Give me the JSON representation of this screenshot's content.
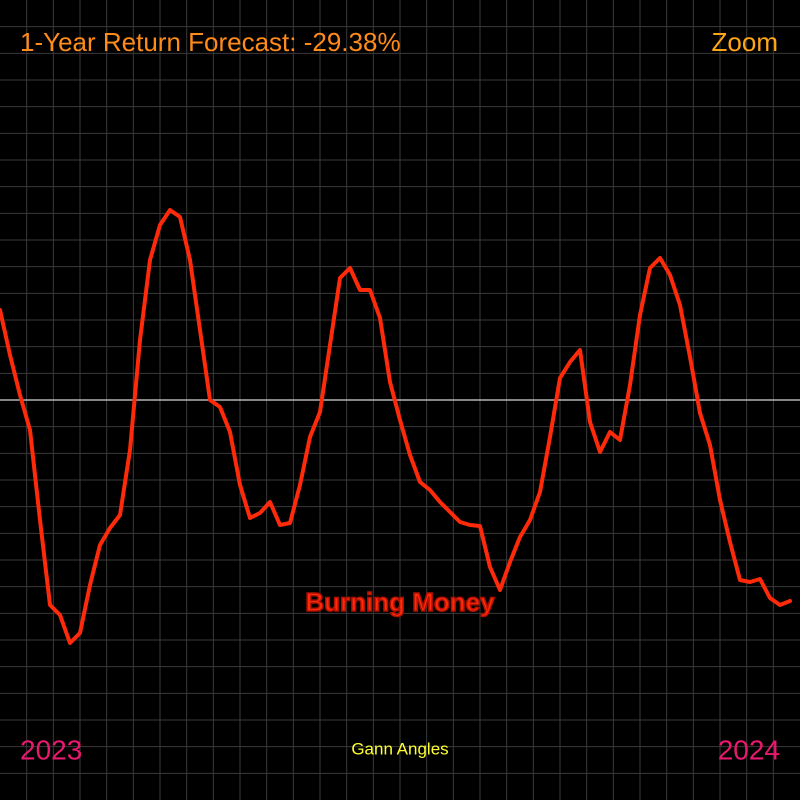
{
  "chart_data": {
    "type": "line",
    "title": "1-Year Return Forecast: -29.38%",
    "zoom_label": "Zoom",
    "annotation": "Burning Money",
    "footer_label": "Gann Angles",
    "start_label": "2023",
    "end_label": "2024",
    "color": "#ff2a0a",
    "ylim": [
      -40,
      40
    ],
    "grid": true,
    "zero_line": true,
    "values": [
      9,
      4.5,
      0.5,
      -3,
      -12,
      -20.5,
      -21.5,
      -24.3,
      -23.3,
      -18.5,
      -14.5,
      -12.8,
      -11.5,
      -5,
      6,
      14,
      17.5,
      19,
      18.3,
      14,
      7,
      0,
      -0.7,
      -3.2,
      -8.5,
      -11.8,
      -11.3,
      -10.2,
      -12.5,
      -12.3,
      -8.5,
      -3.7,
      -1.2,
      5.5,
      12.2,
      13.2,
      11,
      11,
      8.2,
      1.8,
      -2,
      -5.5,
      -8.2,
      -9,
      -10.2,
      -11.2,
      -12.2,
      -12.5,
      -12.6,
      -16.7,
      -19,
      -16.2,
      -13.7,
      -12,
      -9.2,
      -3.7,
      2.2,
      3.8,
      5,
      -2.2,
      -5.2,
      -3.2,
      -4,
      1.5,
      8.5,
      13.2,
      14.2,
      12.5,
      9.5,
      4.3,
      -1.3,
      -4.5,
      -10,
      -14.2,
      -18,
      -18.2,
      -17.9,
      -19.8,
      -20.5,
      -20.1
    ]
  }
}
